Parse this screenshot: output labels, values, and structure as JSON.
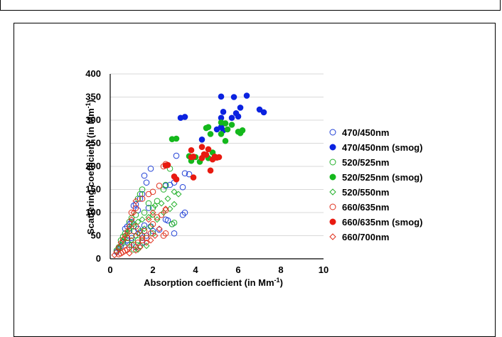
{
  "chart_data": {
    "type": "scatter",
    "xlabel_main": "Absorption coefficient (in Mm",
    "xlabel_sup": "-1",
    "xlabel_end": ")",
    "ylabel_main": "Scattering coefficient (in Mm",
    "ylabel_sup": "-1",
    "ylabel_end": ")",
    "xlim": [
      0,
      10
    ],
    "ylim": [
      0,
      400
    ],
    "xticks": [
      "0",
      "2",
      "4",
      "6",
      "8",
      "10"
    ],
    "yticks": [
      "0",
      "50",
      "100",
      "150",
      "200",
      "250",
      "300",
      "350",
      "400"
    ],
    "grid": "horizontal",
    "legend_position": "right",
    "series": [
      {
        "name": "470/450nm",
        "color": "#1f3fd6",
        "marker": "circle",
        "filled": false,
        "points": [
          [
            3.1,
            223
          ],
          [
            3.5,
            185
          ],
          [
            3.7,
            183
          ],
          [
            3.0,
            165
          ],
          [
            3.4,
            155
          ],
          [
            2.8,
            160
          ],
          [
            2.6,
            158
          ],
          [
            1.9,
            195
          ],
          [
            1.6,
            180
          ],
          [
            1.7,
            165
          ],
          [
            1.5,
            140
          ],
          [
            1.4,
            130
          ],
          [
            1.2,
            118
          ],
          [
            1.1,
            115
          ],
          [
            3.5,
            100
          ],
          [
            3.4,
            95
          ],
          [
            2.6,
            85
          ],
          [
            2.7,
            83
          ],
          [
            2.3,
            63
          ],
          [
            1.9,
            70
          ],
          [
            1.6,
            72
          ],
          [
            1.3,
            65
          ],
          [
            1.0,
            80
          ],
          [
            0.9,
            75
          ],
          [
            0.8,
            70
          ],
          [
            0.7,
            65
          ],
          [
            1.1,
            60
          ],
          [
            1.4,
            55
          ],
          [
            1.7,
            50
          ],
          [
            1.0,
            45
          ],
          [
            0.8,
            40
          ],
          [
            0.6,
            35
          ],
          [
            0.5,
            28
          ],
          [
            0.4,
            22
          ],
          [
            0.3,
            15
          ],
          [
            0.9,
            30
          ],
          [
            1.2,
            25
          ],
          [
            1.5,
            35
          ],
          [
            2.0,
            60
          ],
          [
            1.8,
            110
          ],
          [
            1.3,
            105
          ],
          [
            2.9,
            75
          ],
          [
            3.0,
            55
          ]
        ]
      },
      {
        "name": "470/450nm (smog)",
        "color": "#0b22e0",
        "marker": "circle",
        "filled": true,
        "points": [
          [
            3.3,
            305
          ],
          [
            3.5,
            307
          ],
          [
            4.3,
            258
          ],
          [
            5.2,
            351
          ],
          [
            5.8,
            350
          ],
          [
            6.4,
            353
          ],
          [
            5.3,
            318
          ],
          [
            5.9,
            315
          ],
          [
            6.1,
            327
          ],
          [
            6.0,
            308
          ],
          [
            5.7,
            305
          ],
          [
            5.2,
            305
          ],
          [
            7.0,
            323
          ],
          [
            7.2,
            317
          ],
          [
            5.2,
            285
          ],
          [
            5.3,
            278
          ],
          [
            5.0,
            280
          ]
        ]
      },
      {
        "name": "520/525nm",
        "color": "#22b02a",
        "marker": "circle",
        "filled": false,
        "points": [
          [
            2.8,
            195
          ],
          [
            2.6,
            160
          ],
          [
            2.5,
            150
          ],
          [
            2.2,
            125
          ],
          [
            2.0,
            110
          ],
          [
            1.5,
            150
          ],
          [
            1.4,
            140
          ],
          [
            1.3,
            130
          ],
          [
            1.8,
            120
          ],
          [
            1.6,
            100
          ],
          [
            1.2,
            95
          ],
          [
            1.0,
            88
          ],
          [
            0.9,
            80
          ],
          [
            3.0,
            78
          ],
          [
            2.9,
            75
          ],
          [
            1.1,
            70
          ],
          [
            0.9,
            60
          ],
          [
            0.7,
            55
          ],
          [
            0.6,
            48
          ],
          [
            0.5,
            40
          ],
          [
            0.8,
            35
          ],
          [
            1.0,
            30
          ],
          [
            1.3,
            40
          ],
          [
            1.5,
            50
          ],
          [
            1.7,
            45
          ],
          [
            2.0,
            55
          ],
          [
            0.4,
            25
          ],
          [
            0.3,
            18
          ],
          [
            1.1,
            20
          ],
          [
            1.4,
            28
          ]
        ]
      },
      {
        "name": "520/525nm (smog)",
        "color": "#14b81c",
        "marker": "circle",
        "filled": true,
        "points": [
          [
            2.9,
            259
          ],
          [
            3.1,
            260
          ],
          [
            3.8,
            212
          ],
          [
            3.7,
            222
          ],
          [
            4.5,
            283
          ],
          [
            4.6,
            285
          ],
          [
            4.8,
            230
          ],
          [
            4.7,
            270
          ],
          [
            5.2,
            295
          ],
          [
            5.4,
            293
          ],
          [
            5.5,
            280
          ],
          [
            5.7,
            290
          ],
          [
            6.1,
            272
          ],
          [
            6.2,
            278
          ],
          [
            6.0,
            275
          ],
          [
            5.4,
            255
          ],
          [
            5.2,
            270
          ],
          [
            4.2,
            210
          ],
          [
            4.0,
            220
          ],
          [
            4.6,
            218
          ]
        ]
      },
      {
        "name": "520/550nm",
        "color": "#22b02a",
        "marker": "diamond",
        "filled": false,
        "points": [
          [
            3.0,
            145
          ],
          [
            3.2,
            140
          ],
          [
            2.7,
            130
          ],
          [
            2.4,
            120
          ],
          [
            2.1,
            115
          ],
          [
            2.0,
            95
          ],
          [
            1.8,
            90
          ],
          [
            1.5,
            85
          ],
          [
            1.3,
            80
          ],
          [
            1.1,
            75
          ],
          [
            0.9,
            65
          ],
          [
            0.8,
            55
          ],
          [
            0.7,
            45
          ],
          [
            0.6,
            38
          ],
          [
            0.5,
            30
          ],
          [
            0.4,
            22
          ],
          [
            1.0,
            40
          ],
          [
            1.2,
            50
          ],
          [
            1.4,
            60
          ],
          [
            1.6,
            65
          ],
          [
            1.9,
            70
          ],
          [
            2.2,
            85
          ],
          [
            2.5,
            100
          ],
          [
            2.8,
            108
          ],
          [
            1.3,
            20
          ],
          [
            1.7,
            28
          ],
          [
            3.0,
            118
          ]
        ]
      },
      {
        "name": "660/635nm",
        "color": "#e0301c",
        "marker": "circle",
        "filled": false,
        "points": [
          [
            2.6,
            205
          ],
          [
            2.5,
            200
          ],
          [
            2.3,
            158
          ],
          [
            2.0,
            145
          ],
          [
            1.8,
            140
          ],
          [
            1.5,
            130
          ],
          [
            1.2,
            110
          ],
          [
            1.0,
            100
          ],
          [
            2.6,
            105
          ],
          [
            2.4,
            95
          ],
          [
            2.2,
            90
          ],
          [
            2.6,
            55
          ],
          [
            2.5,
            50
          ],
          [
            1.9,
            55
          ],
          [
            1.7,
            45
          ],
          [
            1.5,
            40
          ],
          [
            1.3,
            35
          ],
          [
            1.1,
            30
          ],
          [
            0.9,
            25
          ],
          [
            0.8,
            20
          ],
          [
            0.7,
            18
          ],
          [
            0.6,
            15
          ],
          [
            0.5,
            12
          ],
          [
            0.4,
            10
          ],
          [
            1.0,
            50
          ],
          [
            0.8,
            45
          ],
          [
            1.6,
            60
          ],
          [
            2.0,
            75
          ],
          [
            1.2,
            70
          ]
        ]
      },
      {
        "name": "660/635nm (smog)",
        "color": "#e81a10",
        "marker": "circle",
        "filled": true,
        "points": [
          [
            2.6,
            202
          ],
          [
            2.7,
            203
          ],
          [
            3.8,
            235
          ],
          [
            3.8,
            220
          ],
          [
            3.9,
            221
          ],
          [
            4.3,
            242
          ],
          [
            4.3,
            218
          ],
          [
            4.4,
            226
          ],
          [
            4.6,
            237
          ],
          [
            4.7,
            191
          ],
          [
            4.8,
            215
          ],
          [
            4.9,
            221
          ],
          [
            5.1,
            220
          ],
          [
            5.0,
            219
          ],
          [
            3.1,
            172
          ],
          [
            3.0,
            178
          ],
          [
            3.9,
            176
          ],
          [
            4.5,
            225
          ]
        ]
      },
      {
        "name": "660/700nm",
        "color": "#e0301c",
        "marker": "diamond",
        "filled": false,
        "points": [
          [
            1.2,
            125
          ],
          [
            1.1,
            100
          ],
          [
            1.0,
            85
          ],
          [
            0.9,
            70
          ],
          [
            0.8,
            60
          ],
          [
            0.7,
            50
          ],
          [
            0.6,
            42
          ],
          [
            0.5,
            35
          ],
          [
            0.4,
            25
          ],
          [
            0.3,
            15
          ],
          [
            0.2,
            8
          ],
          [
            1.3,
            55
          ],
          [
            1.5,
            45
          ],
          [
            1.7,
            35
          ],
          [
            1.9,
            40
          ],
          [
            2.1,
            50
          ],
          [
            2.3,
            65
          ],
          [
            1.4,
            25
          ],
          [
            1.2,
            18
          ],
          [
            0.9,
            12
          ],
          [
            2.6,
            108
          ],
          [
            2.0,
            100
          ],
          [
            1.8,
            85
          ]
        ]
      }
    ]
  }
}
